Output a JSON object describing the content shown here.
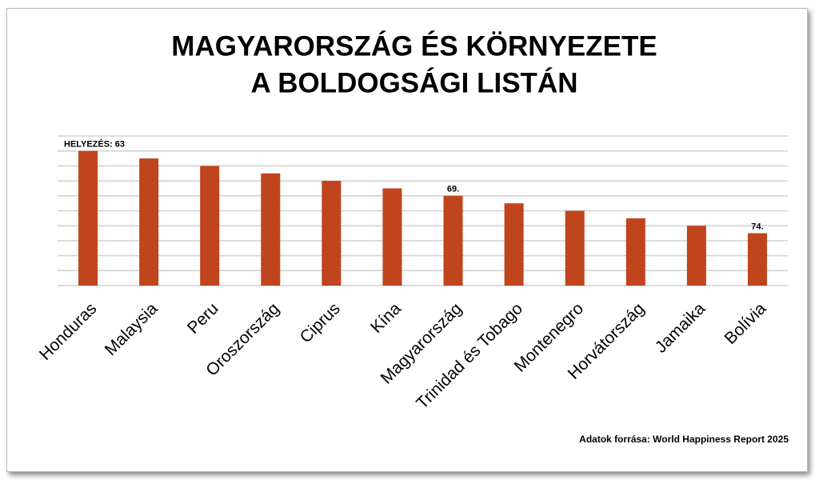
{
  "chart_data": {
    "type": "bar",
    "title": [
      "MAGYARORSZÁG ÉS KÖRNYEZETE",
      "A BOLDOGSÁGI LISTÁN"
    ],
    "categories": [
      "Honduras",
      "Malaysia",
      "Peru",
      "Oroszország",
      "Ciprus",
      "Kína",
      "Magyarország",
      "Trinidad és Tobago",
      "Montenegro",
      "Horvátország",
      "Jamaika",
      "Bolívia"
    ],
    "values": [
      63,
      64,
      65,
      66,
      67,
      68,
      69,
      70,
      71,
      72,
      73,
      74
    ],
    "value_labels": [
      "HELYEZÉS: 63",
      null,
      null,
      null,
      null,
      null,
      "69.",
      null,
      null,
      null,
      null,
      "74."
    ],
    "color": "#c0441c",
    "ylim": [
      81,
      61
    ],
    "yticks": [
      81,
      79,
      77,
      75,
      73,
      71,
      69,
      67,
      65,
      63,
      61
    ],
    "grid": true,
    "source": "Adatok forrása: World Happiness Report 2025"
  }
}
